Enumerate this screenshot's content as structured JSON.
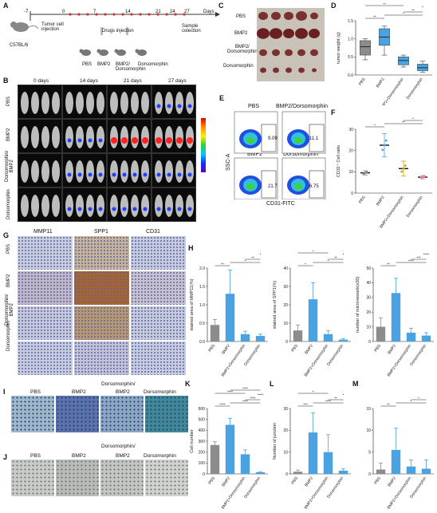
{
  "panels": {
    "A": {
      "letter": "A",
      "mouse_label": "C57BL/6",
      "timeline_ticks": [
        "-7",
        "0",
        "7",
        "14",
        "21",
        "24",
        "27",
        "Days"
      ],
      "tumor_label": "Tumor cell\ninjection",
      "drugs_label": "Drugs injection",
      "sample_label": "Sample\ncolection",
      "groups": [
        "PBS",
        "BMP2",
        "BMP2/\nDorsomorphin",
        "Dorsomorphin"
      ]
    },
    "B": {
      "letter": "B",
      "timepoints": [
        "0 days",
        "14 days",
        "21 days",
        "27 days"
      ],
      "rows": [
        "PBS",
        "BMP2",
        "Dorsomorphin/\nBMP2",
        "Dorsomorphin"
      ]
    },
    "C": {
      "letter": "C",
      "rows": [
        "PBS",
        "BMP2",
        "BMP2/\nDorsomorphin",
        "Dorsomorphin"
      ]
    },
    "D": {
      "letter": "D",
      "ylabel": "tumor weight (g)",
      "categories": [
        "PBS",
        "BMP2",
        "BMP2+Dorsomorphin",
        "Dorsomorphin"
      ],
      "sig": [
        "**",
        "*",
        "**",
        "*",
        "**",
        "**"
      ]
    },
    "E": {
      "letter": "E",
      "quadrants": [
        {
          "name": "PBS",
          "value": "9.09"
        },
        {
          "name": "BMP2/Dorsomorphin",
          "value": "11.1"
        },
        {
          "name": "BMP2",
          "value": "21.7"
        },
        {
          "name": "Dorsomorphin",
          "value": "6.75"
        }
      ],
      "ylabel": "SSC-A",
      "xlabel": "CD31-FITC"
    },
    "F": {
      "letter": "F",
      "ylabel": "CD31⁺ Cell ratio",
      "categories": [
        "PBS",
        "BMP2",
        "BMP2+Dorsomorphin",
        "Dorsomorphin"
      ],
      "sig": [
        "*",
        "**",
        "*"
      ]
    },
    "G": {
      "letter": "G",
      "columns": [
        "MMP11",
        "SPP1",
        "CD31"
      ],
      "rows": [
        "PBS",
        "BMP2",
        "Dorsomorphin/\nBMP2",
        "Dorsomorphin"
      ]
    },
    "H": {
      "letter": "H",
      "categories": [
        "PBS",
        "BMP2",
        "BMP2+Dorsomorphin",
        "Dorsomorphin"
      ]
    },
    "I": {
      "letter": "I",
      "header": "Dorsomorphin/",
      "labels": [
        "PBS",
        "BMP2",
        "BMP2",
        "Dorsomorphin"
      ]
    },
    "J": {
      "letter": "J",
      "header": "Dorsomorphin/",
      "labels": [
        "PBS",
        "BMP2",
        "BMP2",
        "Dorsomorphin"
      ]
    },
    "K": {
      "letter": "K"
    },
    "L": {
      "letter": "L"
    },
    "M": {
      "letter": "M"
    }
  },
  "chart_data": [
    {
      "id": "D",
      "type": "box",
      "categories": [
        "PBS",
        "BMP2",
        "BMP2+Dorsomorphin",
        "Dorsomorphin"
      ],
      "ylabel": "tumor weight (g)",
      "yticks": [
        "0.0",
        "0.5",
        "1.0",
        "1.5"
      ],
      "ylim": [
        0,
        1.5
      ],
      "boxes": [
        {
          "min": 0.42,
          "q1": 0.55,
          "median": 0.78,
          "q3": 0.95,
          "max": 1.0
        },
        {
          "min": 0.55,
          "q1": 0.82,
          "median": 1.05,
          "q3": 1.28,
          "max": 1.35
        },
        {
          "min": 0.22,
          "q1": 0.28,
          "median": 0.4,
          "q3": 0.5,
          "max": 0.55
        },
        {
          "min": 0.08,
          "q1": 0.12,
          "median": 0.2,
          "q3": 0.3,
          "max": 0.38
        }
      ],
      "colors": [
        "#8c8c8c",
        "#4aa3e0",
        "#4aa3e0",
        "#4aa3e0"
      ],
      "significance": [
        "**",
        "*",
        "**",
        "*",
        "**",
        "**"
      ]
    },
    {
      "id": "F",
      "type": "scatter",
      "categories": [
        "PBS",
        "BMP2",
        "BMP2+Dorsomorphin",
        "Dorsomorphin"
      ],
      "ylabel": "CD31⁺ Cell ratio",
      "yticks": [
        "0",
        "10",
        "20",
        "30"
      ],
      "ylim": [
        0,
        30
      ],
      "means": [
        9.5,
        22.5,
        11.5,
        7.5
      ],
      "errors": [
        1.0,
        5.5,
        3.5,
        0.8
      ],
      "colors": [
        "#888888",
        "#4aa3e0",
        "#c8a800",
        "#e07aa0"
      ],
      "significance": [
        "*",
        "**",
        "*"
      ]
    },
    {
      "id": "H1",
      "type": "bar",
      "categories": [
        "PBS",
        "BMP2",
        "BMP2+Dorsomorphin",
        "Dorsomorphin"
      ],
      "ylabel": "stained area of MMP11(%)",
      "yticks": [
        "0.0",
        "0.5",
        "1.0",
        "1.5",
        "2.0"
      ],
      "ylim": [
        0,
        2.0
      ],
      "values": [
        0.45,
        1.3,
        0.2,
        0.15
      ],
      "errors": [
        0.15,
        0.65,
        0.08,
        0.05
      ],
      "colors": [
        "#8c8c8c",
        "#4aa3e0",
        "#4aa3e0",
        "#4aa3e0"
      ],
      "significance": [
        "**",
        "*",
        "**",
        "*"
      ]
    },
    {
      "id": "H2",
      "type": "bar",
      "categories": [
        "PBS",
        "BMP2",
        "BMP2+Dorsomorphin",
        "Dorsomorphin"
      ],
      "ylabel": "stained area of SPP1(%)",
      "yticks": [
        "0",
        "10",
        "20",
        "30",
        "40"
      ],
      "ylim": [
        0,
        40
      ],
      "values": [
        6,
        23,
        4,
        1
      ],
      "errors": [
        3,
        9,
        2,
        0.5
      ],
      "colors": [
        "#8c8c8c",
        "#4aa3e0",
        "#4aa3e0",
        "#4aa3e0"
      ],
      "significance": [
        "*",
        "*",
        "**",
        "*",
        "*"
      ]
    },
    {
      "id": "H3",
      "type": "bar",
      "categories": [
        "PBS",
        "BMP2",
        "BMP2+Dorsomorphin",
        "Dorsomorphin"
      ],
      "ylabel": "number of microvessels(x20)",
      "yticks": [
        "0",
        "10",
        "20",
        "30",
        "40",
        "50"
      ],
      "ylim": [
        0,
        50
      ],
      "values": [
        10,
        33,
        6,
        4
      ],
      "errors": [
        6,
        10,
        3,
        2
      ],
      "colors": [
        "#8c8c8c",
        "#4aa3e0",
        "#4aa3e0",
        "#4aa3e0"
      ],
      "significance": [
        "**",
        "****",
        "***",
        "****"
      ]
    },
    {
      "id": "K",
      "type": "bar",
      "categories": [
        "PBS",
        "BMP2",
        "BMP2+Dorsomorphin",
        "Dorsomorphin"
      ],
      "ylabel": "Cell number",
      "yticks": [
        "0",
        "100",
        "200",
        "300",
        "400",
        "500",
        "600"
      ],
      "ylim": [
        0,
        600
      ],
      "values": [
        265,
        450,
        180,
        15
      ],
      "errors": [
        30,
        60,
        40,
        5
      ],
      "colors": [
        "#8c8c8c",
        "#4aa3e0",
        "#4aa3e0",
        "#4aa3e0"
      ],
      "significance": [
        "****",
        "****",
        "****",
        "****",
        "****",
        "****"
      ]
    },
    {
      "id": "L",
      "type": "bar",
      "categories": [
        "PBS",
        "BMP2",
        "BMP2+Dorsomorphin",
        "Dorsomorphin"
      ],
      "ylabel": "Number of junction",
      "yticks": [
        "0",
        "10",
        "20",
        "30"
      ],
      "ylim": [
        0,
        30
      ],
      "values": [
        1,
        19,
        10,
        1.5
      ],
      "errors": [
        0.8,
        9,
        8,
        0.8
      ],
      "colors": [
        "#8c8c8c",
        "#4aa3e0",
        "#4aa3e0",
        "#4aa3e0"
      ],
      "significance": [
        "***",
        "****",
        "**",
        "*",
        "*"
      ]
    },
    {
      "id": "M",
      "type": "bar",
      "categories": [
        "PBS",
        "BMP2",
        "BMP2+Dorsomorphin",
        "Dorsomorphin"
      ],
      "ylabel": "",
      "yticks": [
        "0",
        "5",
        "10",
        "15"
      ],
      "ylim": [
        0,
        15
      ],
      "values": [
        1,
        5.5,
        1.7,
        1.2
      ],
      "errors": [
        1.5,
        5,
        1.5,
        2
      ],
      "colors": [
        "#8c8c8c",
        "#4aa3e0",
        "#4aa3e0",
        "#4aa3e0"
      ],
      "significance": [
        "**",
        "*",
        "*"
      ]
    }
  ]
}
